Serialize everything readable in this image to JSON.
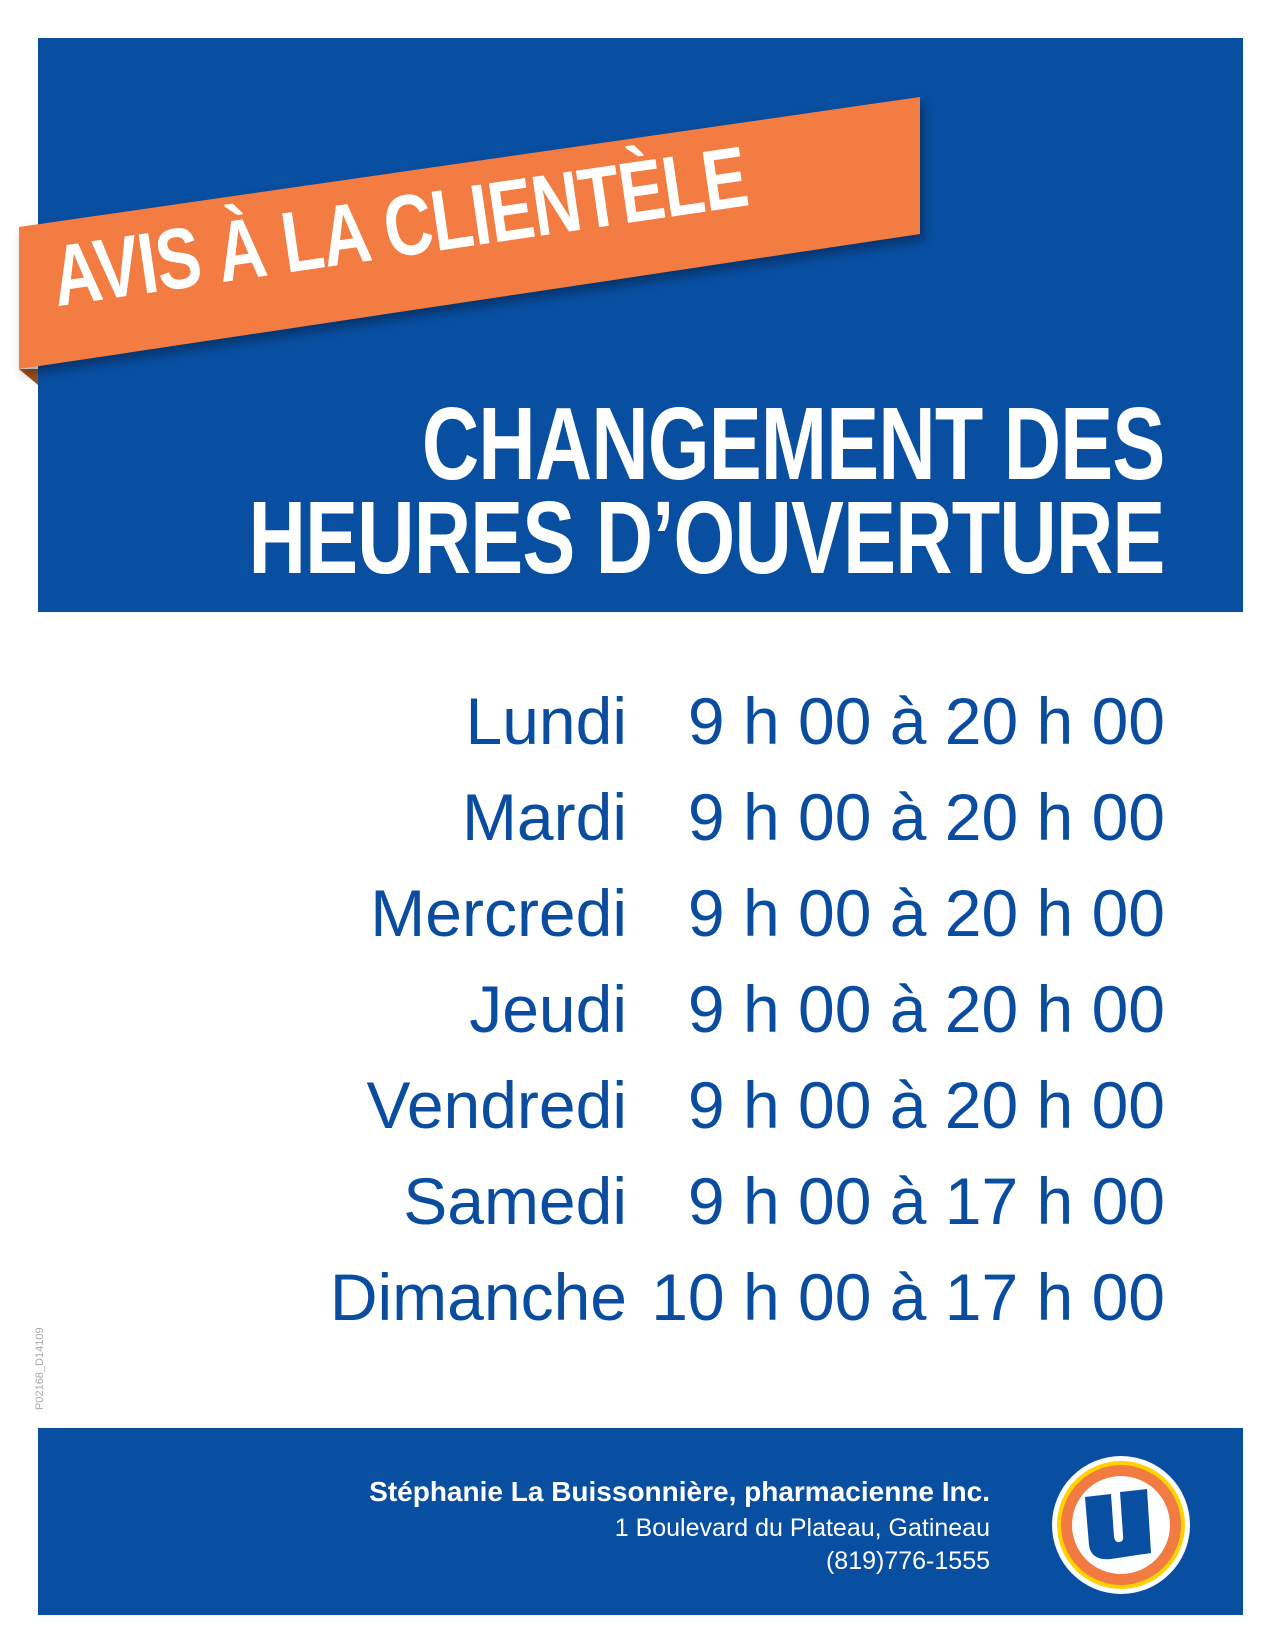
{
  "banner": "AVIS À LA CLIENTÈLE",
  "title": {
    "line1": "CHANGEMENT DES",
    "line2": "HEURES D’OUVERTURE"
  },
  "hours": [
    {
      "day": "Lundi",
      "time": "9 h 00 à 20 h 00"
    },
    {
      "day": "Mardi",
      "time": "9 h 00 à 20 h 00"
    },
    {
      "day": "Mercredi",
      "time": "9 h 00 à 20 h 00"
    },
    {
      "day": "Jeudi",
      "time": "9 h 00 à 20 h 00"
    },
    {
      "day": "Vendredi",
      "time": "9 h 00 à 20 h 00"
    },
    {
      "day": "Samedi",
      "time": "9 h 00 à 17 h 00"
    },
    {
      "day": "Dimanche",
      "time": "10 h 00 à 17 h 00"
    }
  ],
  "document_code": "P02168_D14109",
  "footer": {
    "name": "Stéphanie La Buissonnière, pharmacienne Inc.",
    "address": "1 Boulevard du Plateau, Gatineau",
    "phone": "(819)776-1555",
    "logo_letter": "U"
  },
  "colors": {
    "blue": "#084ea1",
    "orange": "#f27b42",
    "yellow": "#ffd200"
  }
}
